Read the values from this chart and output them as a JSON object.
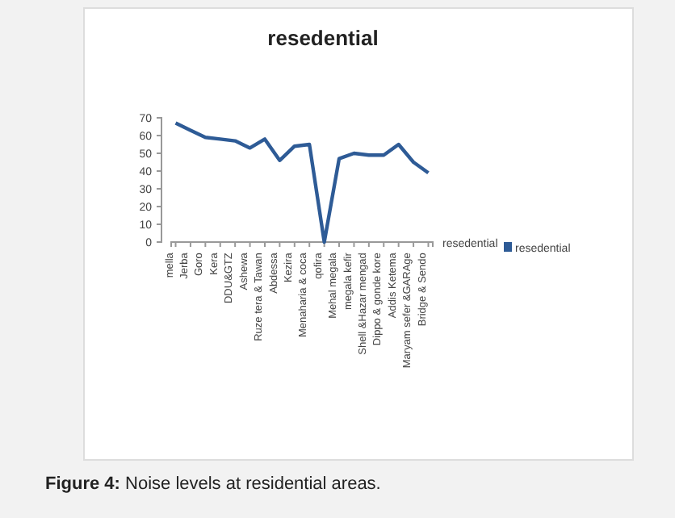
{
  "chart_data": {
    "type": "line",
    "title": "resedential",
    "xlabel": "resedential",
    "categories": [
      "mella",
      "Jerba",
      "Goro",
      "Kera",
      "DDU&GTZ",
      "Ashewa",
      "Ruze tera & Tawan",
      "Abdessa",
      "Kezira",
      "Menaharia & coca",
      "qofira",
      "Mehal megala",
      "megala kefir",
      "Shell &Hazar mengad",
      "Dippo & gonde kore",
      "Addis Ketema",
      "Maryam sefer &GARAge",
      "Bridge & Sendo"
    ],
    "series": [
      {
        "name": "resedential",
        "color": "#2e5b96",
        "values": [
          67,
          63,
          59,
          58,
          57,
          53,
          58,
          46,
          54,
          55,
          0,
          47,
          50,
          49,
          49,
          55,
          45,
          39
        ]
      }
    ],
    "ylim": [
      0,
      70
    ],
    "yticks": [
      0,
      10,
      20,
      30,
      40,
      50,
      60,
      70
    ],
    "grid": false,
    "legend": "right",
    "marker": "none",
    "annotations": [
      "Figure 4: Noise levels at residential areas."
    ]
  }
}
